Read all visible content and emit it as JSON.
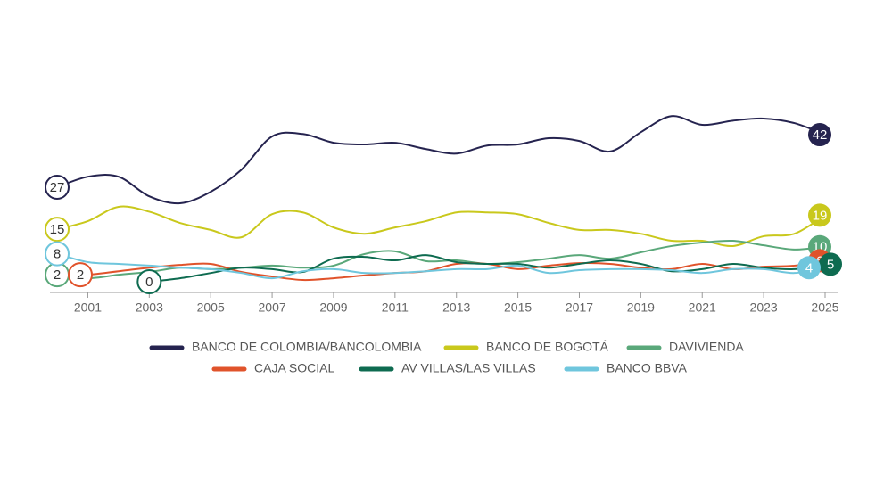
{
  "chart_data": {
    "type": "line",
    "x": [
      2000,
      2001,
      2002,
      2003,
      2004,
      2005,
      2006,
      2007,
      2008,
      2009,
      2010,
      2011,
      2012,
      2013,
      2014,
      2015,
      2016,
      2017,
      2018,
      2019,
      2020,
      2021,
      2022,
      2023,
      2024,
      2025
    ],
    "xlim": [
      2000,
      2025
    ],
    "xticks": [
      2001,
      2003,
      2005,
      2007,
      2009,
      2011,
      2013,
      2015,
      2017,
      2019,
      2021,
      2023,
      2025
    ],
    "ylim": [
      0,
      55
    ],
    "series": [
      {
        "name": "BANCO DE COLOMBIA/BANCOLOMBIA",
        "color": "#25234f",
        "values": [
          27,
          30,
          30,
          24.4,
          22.4,
          25.7,
          32,
          41.5,
          42.2,
          39.7,
          39.2,
          39.7,
          37.9,
          36.6,
          38.9,
          39.2,
          41,
          40.2,
          37.2,
          42.7,
          47.3,
          44.8,
          46,
          46.6,
          45.3,
          42
        ]
      },
      {
        "name": "BANCO DE BOGOTÁ",
        "color": "#c9c81c",
        "values": [
          15,
          17.3,
          21.4,
          20,
          16.8,
          14.8,
          12.7,
          19.3,
          19.8,
          15.5,
          13.7,
          15.5,
          17.3,
          19.8,
          19.8,
          19.3,
          16.8,
          14.8,
          14.8,
          13.7,
          11.7,
          11.7,
          10.2,
          13,
          13.7,
          19
        ]
      },
      {
        "name": "DAVIVIENDA",
        "color": "#5aa87a",
        "values": [
          2,
          1,
          2,
          2.8,
          4,
          3.6,
          4,
          4.6,
          4,
          4.6,
          7.9,
          8.7,
          5.9,
          6.1,
          5.1,
          5.6,
          6.6,
          7.6,
          6.6,
          8.4,
          10.2,
          11.2,
          11.7,
          10.4,
          9.2,
          10
        ]
      },
      {
        "name": "CAJA SOCIAL",
        "color": "#e0532b",
        "values": [
          2,
          2,
          3,
          4,
          4.8,
          5.1,
          2.8,
          1.5,
          0.5,
          1,
          1.8,
          2.5,
          3,
          5.1,
          5.1,
          3.6,
          4.6,
          5.3,
          5.1,
          4,
          3.6,
          5.1,
          3.6,
          4.3,
          4.6,
          6
        ]
      },
      {
        "name": "AV VILLAS/LAS VILLAS",
        "color": "#0e6b50",
        "values": [
          null,
          null,
          null,
          0,
          1,
          2.5,
          4,
          3.6,
          2.8,
          6.6,
          7.1,
          6.1,
          7.6,
          5.6,
          5.1,
          5.1,
          4,
          5.1,
          6.1,
          5.1,
          3,
          3.6,
          5.1,
          4,
          3.6,
          5
        ]
      },
      {
        "name": "BANCO BBVA",
        "color": "#6fc6dd",
        "values": [
          8,
          5.6,
          5.1,
          4.6,
          4,
          3.6,
          2.5,
          1,
          3,
          3.6,
          2.5,
          2.5,
          3,
          3.6,
          3.6,
          4.6,
          2.5,
          3.3,
          3.6,
          3.6,
          3.3,
          2.5,
          3.6,
          3.6,
          2.5,
          4
        ]
      }
    ]
  }
}
